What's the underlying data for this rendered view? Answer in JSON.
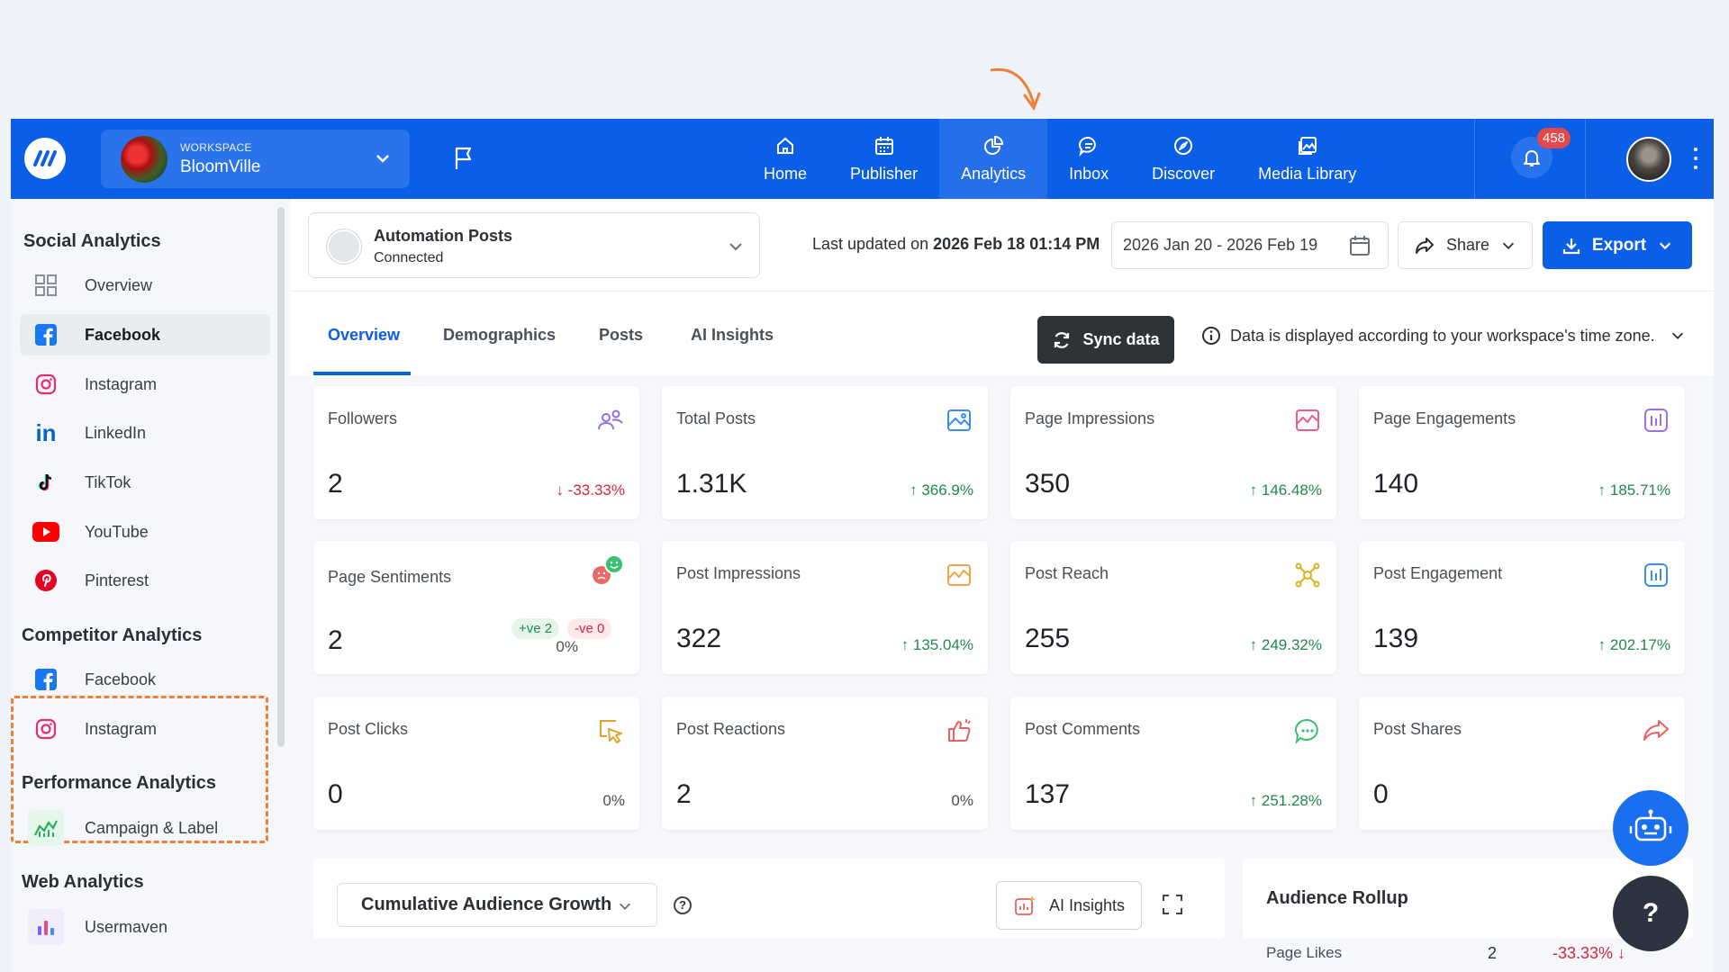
{
  "topbar": {
    "workspace_caption": "WORKSPACE",
    "workspace_name": "BloomVille",
    "nav": [
      {
        "label": "Home",
        "icon": "home-icon"
      },
      {
        "label": "Publisher",
        "icon": "calendar-icon"
      },
      {
        "label": "Analytics",
        "icon": "analytics-icon",
        "active": true
      },
      {
        "label": "Inbox",
        "icon": "chat-icon"
      },
      {
        "label": "Discover",
        "icon": "compass-icon"
      },
      {
        "label": "Media Library",
        "icon": "media-icon"
      }
    ],
    "notification_count": "458",
    "accent": "#0b5ee6"
  },
  "sidebar": {
    "social_title": "Social Analytics",
    "social_items": [
      {
        "label": "Overview"
      },
      {
        "label": "Facebook",
        "active": true
      },
      {
        "label": "Instagram"
      },
      {
        "label": "LinkedIn"
      },
      {
        "label": "TikTok"
      },
      {
        "label": "YouTube"
      },
      {
        "label": "Pinterest"
      }
    ],
    "competitor_title": "Competitor Analytics",
    "competitor_items": [
      {
        "label": "Facebook"
      },
      {
        "label": "Instagram"
      }
    ],
    "performance_title": "Performance Analytics",
    "performance_items": [
      {
        "label": "Campaign & Label"
      }
    ],
    "web_title": "Web Analytics",
    "web_items": [
      {
        "label": "Usermaven"
      }
    ]
  },
  "header": {
    "account_name": "Automation Posts",
    "account_status": "Connected",
    "last_updated_prefix": "Last updated on ",
    "last_updated_value": "2026 Feb 18 01:14 PM",
    "date_range": "2026 Jan 20 - 2026 Feb 19",
    "share_label": "Share",
    "export_label": "Export"
  },
  "tabs": {
    "items": [
      "Overview",
      "Demographics",
      "Posts",
      "AI Insights"
    ],
    "active": "Overview",
    "sync_label": "Sync data",
    "timezone_note": "Data is displayed according to your workspace's time zone."
  },
  "cards": [
    {
      "label": "Followers",
      "value": "2",
      "change": "↓ -33.33%",
      "trend": "down",
      "icon": "people-icon"
    },
    {
      "label": "Total Posts",
      "value": "1.31K",
      "change": "↑ 366.9%",
      "trend": "up",
      "icon": "image-icon"
    },
    {
      "label": "Page Impressions",
      "value": "350",
      "change": "↑ 146.48%",
      "trend": "up",
      "icon": "image-chart-icon"
    },
    {
      "label": "Page Engagements",
      "value": "140",
      "change": "↑ 185.71%",
      "trend": "up",
      "icon": "bar-chart-icon"
    },
    {
      "label": "Page Sentiments",
      "value": "2",
      "change": "0%",
      "trend": "flat",
      "icon": "sentiment-icon",
      "positive": "+ve 2",
      "negative": "-ve 0"
    },
    {
      "label": "Post Impressions",
      "value": "322",
      "change": "↑ 135.04%",
      "trend": "up",
      "icon": "image-chart-icon"
    },
    {
      "label": "Post Reach",
      "value": "255",
      "change": "↑ 249.32%",
      "trend": "up",
      "icon": "reach-icon"
    },
    {
      "label": "Post Engagement",
      "value": "139",
      "change": "↑ 202.17%",
      "trend": "up",
      "icon": "bar-chart-icon"
    },
    {
      "label": "Post Clicks",
      "value": "0",
      "change": "0%",
      "trend": "flat",
      "icon": "cursor-icon"
    },
    {
      "label": "Post Reactions",
      "value": "2",
      "change": "0%",
      "trend": "flat",
      "icon": "thumbs-up-icon"
    },
    {
      "label": "Post Comments",
      "value": "137",
      "change": "↑ 251.28%",
      "trend": "up",
      "icon": "comment-icon"
    },
    {
      "label": "Post Shares",
      "value": "0",
      "change": "",
      "trend": "flat",
      "icon": "share-arrow-icon"
    }
  ],
  "growth_panel": {
    "dropdown_label": "Cumulative Audience Growth",
    "ai_insights_label": "AI Insights"
  },
  "rollup": {
    "title": "Audience Rollup",
    "row_label": "Page Likes",
    "row_value": "2",
    "row_change": "-33.33% ↓"
  },
  "help_label": "?"
}
